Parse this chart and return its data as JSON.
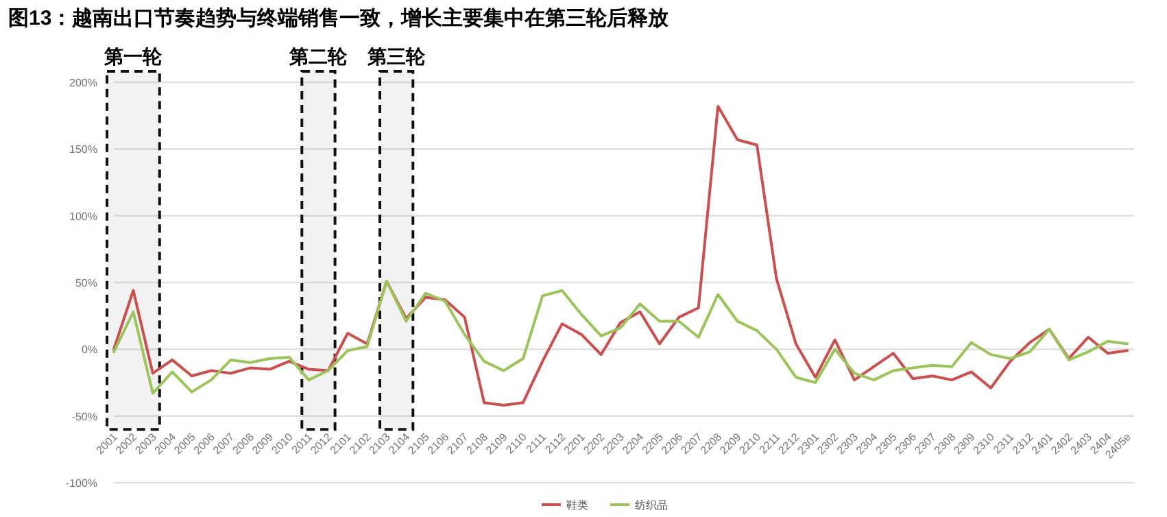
{
  "chart_data": {
    "type": "line",
    "title": "图13：越南出口节奏趋势与终端销售一致，增长主要集中在第三轮后释放",
    "categories": [
      "2001",
      "2002",
      "2003",
      "2004",
      "2005",
      "2006",
      "2007",
      "2008",
      "2009",
      "2010",
      "2011",
      "2012",
      "2101",
      "2102",
      "2103",
      "2104",
      "2105",
      "2106",
      "2107",
      "2108",
      "2109",
      "2110",
      "2111",
      "2112",
      "2201",
      "2202",
      "2203",
      "2204",
      "2205",
      "2206",
      "2207",
      "2208",
      "2209",
      "2210",
      "2211",
      "2212",
      "2301",
      "2302",
      "2303",
      "2304",
      "2305",
      "2306",
      "2307",
      "2308",
      "2309",
      "2310",
      "2311",
      "2312",
      "2401",
      "2402",
      "2403",
      "2404",
      "2405e"
    ],
    "series": [
      {
        "name": "鞋类",
        "color": "#c9504f",
        "values": [
          0,
          44,
          -18,
          -8,
          -20,
          -16,
          -18,
          -14,
          -15,
          -9,
          -15,
          -16,
          12,
          4,
          51,
          23,
          39,
          37,
          24,
          -40,
          -42,
          -40,
          -9,
          19,
          11,
          -4,
          20,
          28,
          4,
          24,
          31,
          182,
          157,
          153,
          53,
          4,
          -21,
          7,
          -23,
          -13,
          -3,
          -22,
          -20,
          -23,
          -17,
          -29,
          -9,
          5,
          15,
          -7,
          9,
          -3,
          -1
        ]
      },
      {
        "name": "纺织品",
        "color": "#9dc45a",
        "values": [
          -2,
          28,
          -33,
          -17,
          -32,
          -23,
          -8,
          -10,
          -7,
          -6,
          -23,
          -16,
          -1,
          2,
          51,
          21,
          42,
          36,
          11,
          -9,
          -16,
          -7,
          40,
          44,
          26,
          10,
          16,
          34,
          21,
          21,
          9,
          41,
          21,
          14,
          0,
          -21,
          -25,
          0,
          -18,
          -23,
          -16,
          -14,
          -12,
          -13,
          5,
          -4,
          -7,
          -2,
          15,
          -8,
          -2,
          6,
          4
        ]
      }
    ],
    "ylim": [
      -100,
      200
    ],
    "yticks": [
      {
        "value": -100,
        "label": "-100%"
      },
      {
        "value": -50,
        "label": "-50%"
      },
      {
        "value": 0,
        "label": "0%"
      },
      {
        "value": 50,
        "label": "50%"
      },
      {
        "value": 100,
        "label": "100%"
      },
      {
        "value": 150,
        "label": "150%"
      },
      {
        "value": 200,
        "label": "200%"
      }
    ],
    "grid": "y",
    "legend": "bottom",
    "marker": "none",
    "line_style": "solid",
    "bands": [
      {
        "axis": "x",
        "from": "2001",
        "to": "2003",
        "label": "第一轮"
      },
      {
        "axis": "x",
        "from": "2011",
        "to": "2012",
        "label": "第二轮"
      },
      {
        "axis": "x",
        "from": "2103",
        "to": "2104",
        "label": "第三轮"
      }
    ]
  }
}
